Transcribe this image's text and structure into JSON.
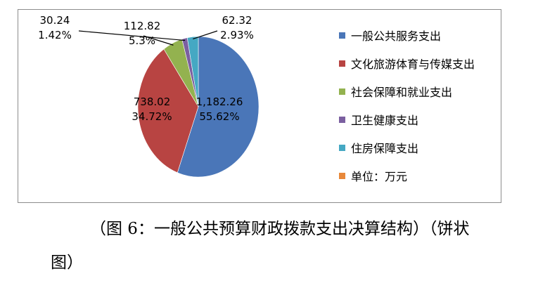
{
  "chart_data": {
    "type": "pie",
    "unit_note": "单位：万元",
    "slices": [
      {
        "name": "一般公共服务支出",
        "value": 1182.26,
        "value_label": "1,182.26",
        "percent_label": "55.62%",
        "color": "#4a76b8"
      },
      {
        "name": "文化旅游体育与传媒支出",
        "value": 738.02,
        "value_label": "738.02",
        "percent_label": "34.72%",
        "color": "#b84442"
      },
      {
        "name": "社会保障和就业支出",
        "value": 112.82,
        "value_label": "112.82",
        "percent_label": "5.3%",
        "color": "#93b24f"
      },
      {
        "name": "卫生健康支出",
        "value": 30.24,
        "value_label": "30.24",
        "percent_label": "1.42%",
        "color": "#7b5fa0"
      },
      {
        "name": "住房保障支出",
        "value": 62.32,
        "value_label": "62.32",
        "percent_label": "2.93%",
        "color": "#45a8c3"
      }
    ],
    "legend": [
      {
        "label": "一般公共服务支出",
        "color": "#4a76b8"
      },
      {
        "label": "文化旅游体育与传媒支出",
        "color": "#b84442"
      },
      {
        "label": "社会保障和就业支出",
        "color": "#93b24f"
      },
      {
        "label": "卫生健康支出",
        "color": "#7b5fa0"
      },
      {
        "label": "住房保障支出",
        "color": "#45a8c3"
      },
      {
        "label": "单位：万元",
        "color": "#e8883a"
      }
    ],
    "legend_position": "right"
  },
  "caption": {
    "line1": "（图 6：一般公共预算财政拨款支出决算结构）（饼状",
    "line2": "图）"
  }
}
